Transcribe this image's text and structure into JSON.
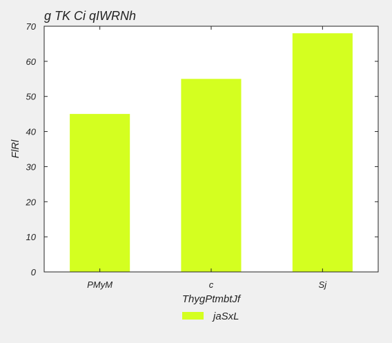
{
  "chart_data": {
    "type": "bar",
    "title": "g TK Ci qIWRNh",
    "xlabel": "ThygPtmbtJf",
    "ylabel": "FlRl",
    "categories": [
      "PMyM",
      "c",
      "Sj"
    ],
    "series": [
      {
        "name": "jaSxL",
        "values": [
          45,
          55,
          68
        ],
        "color": "#d4ff20"
      }
    ],
    "ylim": [
      0,
      70
    ],
    "yticks": [
      0,
      10,
      20,
      30,
      40,
      50,
      60,
      70
    ],
    "grid": false,
    "legend_position": "bottom-center"
  }
}
